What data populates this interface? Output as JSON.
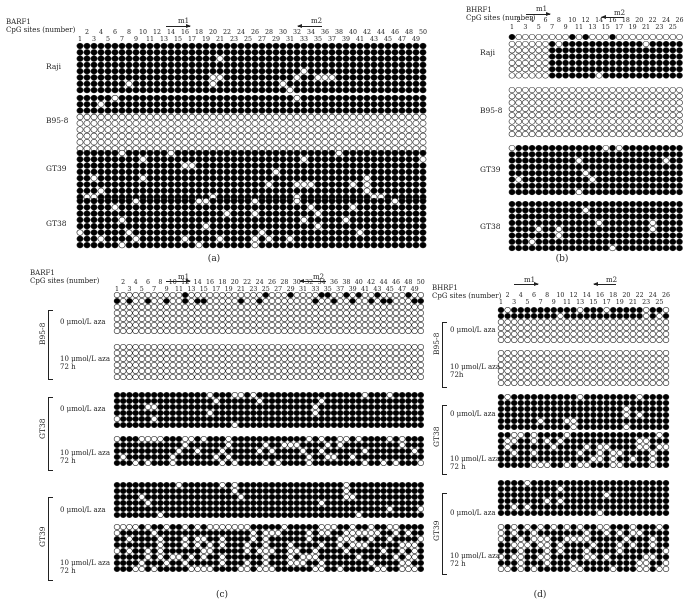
{
  "panels": {
    "a": {
      "caption": "(a)",
      "gene": "BARF1",
      "axis_label": "CpG sites (number)",
      "markers": [
        "m1",
        "m2"
      ],
      "cells": [
        "Raji",
        "B95-8",
        "GT39",
        "GT38"
      ]
    },
    "b": {
      "caption": "(b)",
      "gene": "BHRF1",
      "axis_label": "CpG sites (number)",
      "markers": [
        "m1",
        "m2"
      ],
      "cells": [
        "Raji",
        "B95-8",
        "GT39",
        "GT38"
      ]
    },
    "c": {
      "caption": "(c)",
      "gene": "BARF1",
      "axis_label": "CpG sites (number)",
      "markers": [
        "m1",
        "m2"
      ],
      "cells": [
        "B95-8",
        "GT38",
        "GT39"
      ],
      "cond0": "0 μmol/L aza",
      "cond10": "10 μmol/L aza",
      "time": "72 h"
    },
    "d": {
      "caption": "(d)",
      "gene": "BHRF1",
      "axis_label": "CpG sites (number)",
      "markers": [
        "m1",
        "m2"
      ],
      "cells": [
        "B95-8",
        "GT38",
        "GT39"
      ],
      "cond0": "0 μmol/L aza",
      "cond10": "10 μmol/L aza",
      "time_b958": "72h",
      "time": "72 h"
    }
  },
  "ticks50_top": [
    "2",
    "4",
    "6",
    "8",
    "10",
    "12",
    "14",
    "16",
    "18",
    "20",
    "22",
    "24",
    "26",
    "28",
    "30",
    "32",
    "34",
    "36",
    "38",
    "40",
    "42",
    "44",
    "46",
    "48",
    "50"
  ],
  "ticks50_bot": [
    "1",
    "3",
    "5",
    "7",
    "9",
    "11",
    "13",
    "15",
    "17",
    "19",
    "21",
    "23",
    "25",
    "27",
    "29",
    "31",
    "33",
    "35",
    "37",
    "39",
    "41",
    "43",
    "45",
    "47",
    "49"
  ],
  "ticks26_top": [
    "2",
    "4",
    "6",
    "8",
    "10",
    "12",
    "14",
    "16",
    "18",
    "20",
    "22",
    "24",
    "26"
  ],
  "ticks26_bot": [
    "1",
    "3",
    "5",
    "7",
    "9",
    "11",
    "13",
    "15",
    "17",
    "19",
    "21",
    "23",
    "25"
  ],
  "legend": {
    "methylated_color": "#000000",
    "unmethylated_color": "#ffffff"
  }
}
